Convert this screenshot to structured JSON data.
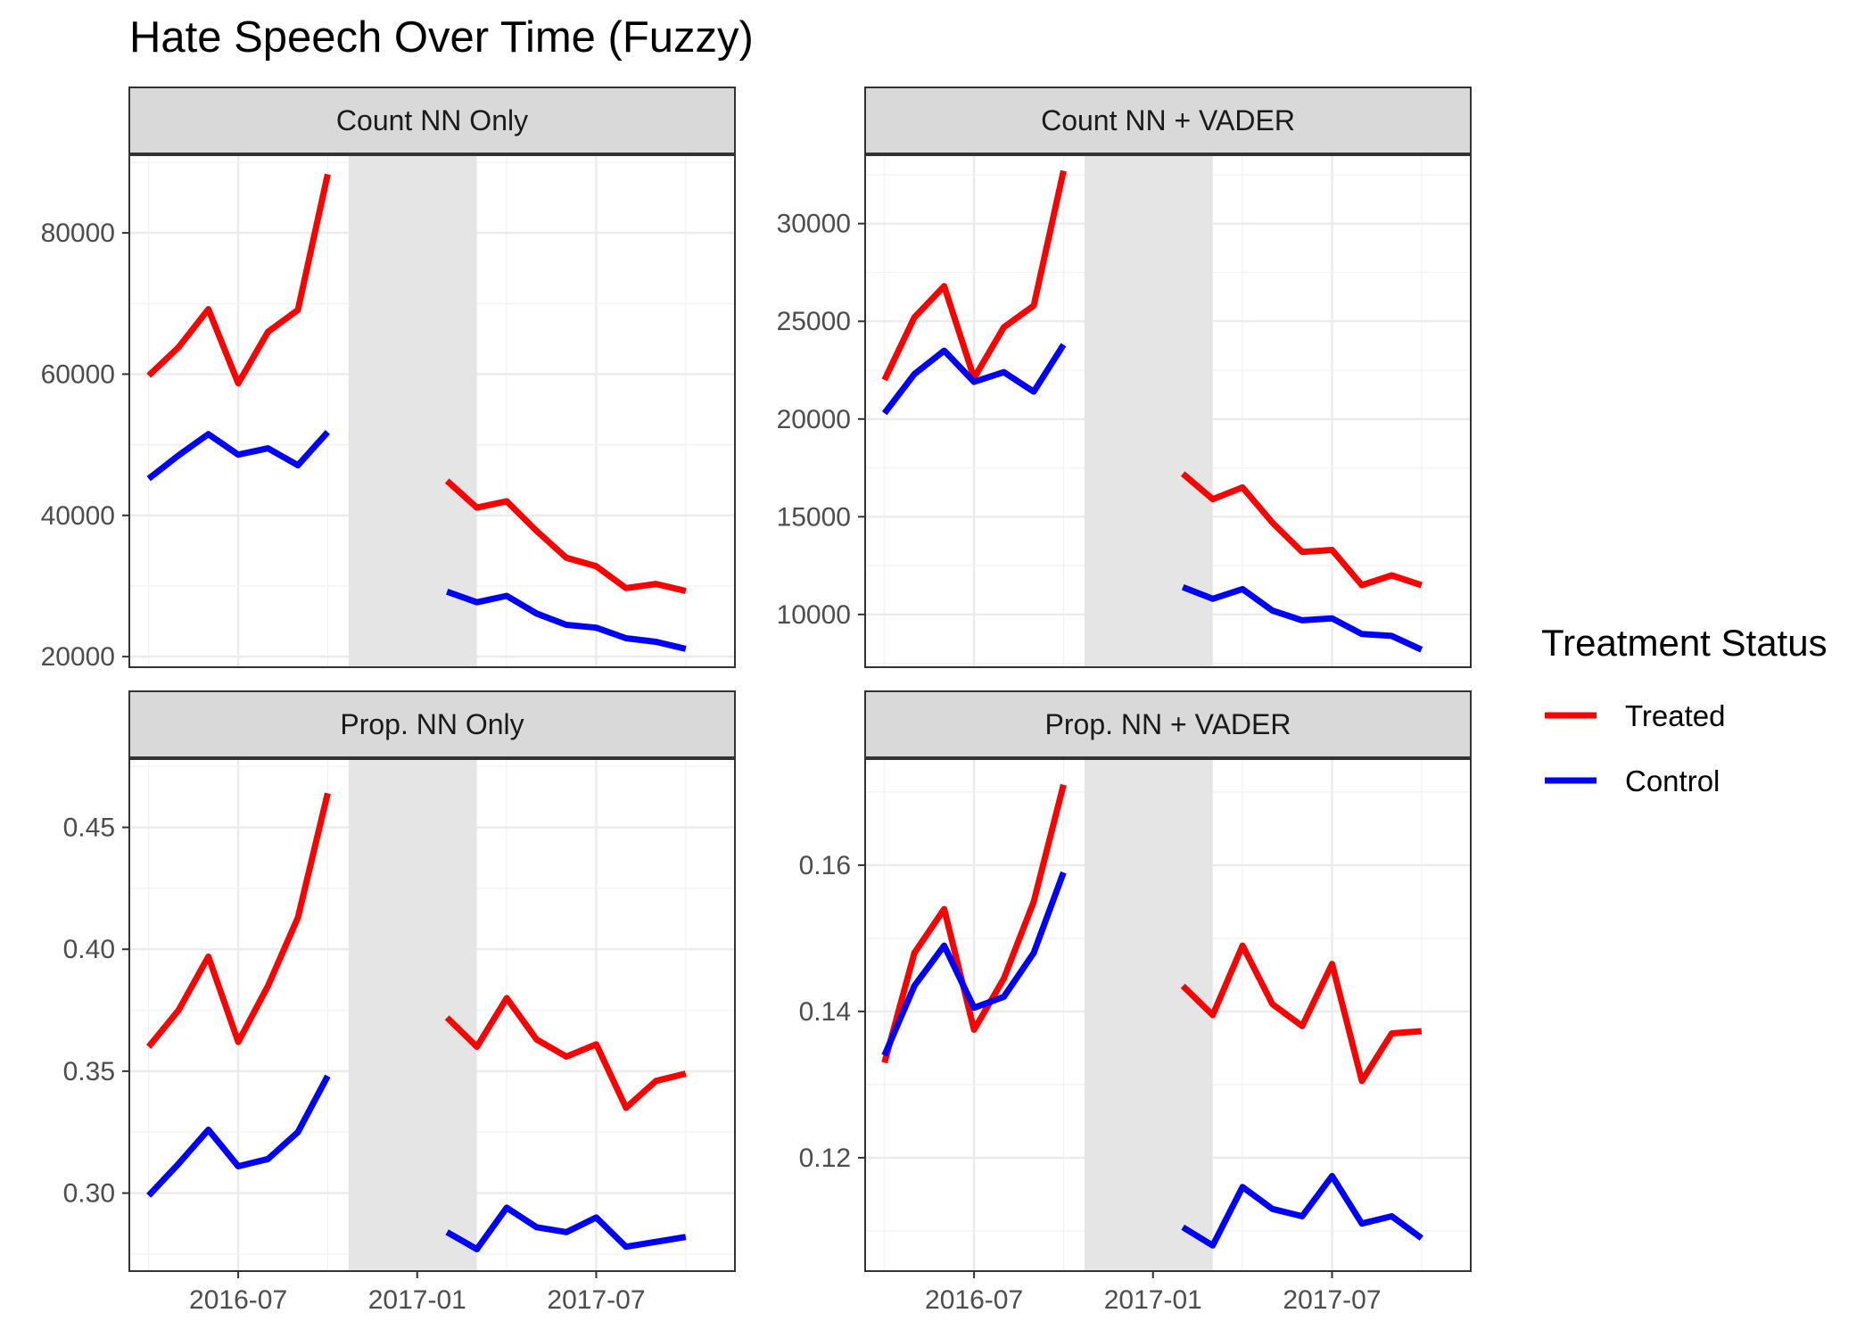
{
  "chart_data": {
    "title": "Hate Speech Over Time (Fuzzy)",
    "type": "line",
    "x": [
      "2016-04",
      "2016-05",
      "2016-06",
      "2016-07",
      "2016-08",
      "2016-09",
      "2016-10",
      "2016-11",
      "2016-12",
      "2017-01",
      "2017-02",
      "2017-03",
      "2017-04",
      "2017-05",
      "2017-06",
      "2017-07",
      "2017-08",
      "2017-09",
      "2017-10",
      "2017-11"
    ],
    "xticks": [
      "2016-07",
      "2017-01",
      "2017-07"
    ],
    "shaded_period": [
      "2016-11",
      "2017-03"
    ],
    "grid": true,
    "legend": {
      "title": "Treatment Status",
      "position": "right",
      "entries": [
        {
          "name": "Treated",
          "color": "#ff0000"
        },
        {
          "name": "Control",
          "color": "#0000ff"
        }
      ]
    },
    "panels": [
      {
        "strip": "Count NN Only",
        "ylim": [
          18500,
          91000
        ],
        "yticks": [
          "20000",
          "40000",
          "60000",
          "80000"
        ],
        "series": [
          {
            "name": "Treated",
            "color": "#ff0000",
            "values": [
              59800,
              63800,
              69200,
              58700,
              66000,
              69100,
              88300,
              null,
              null,
              null,
              44900,
              41100,
              42000,
              37800,
              34000,
              32800,
              29700,
              30300,
              29300,
              null
            ]
          },
          {
            "name": "Control",
            "color": "#0000ff",
            "values": [
              45200,
              48500,
              51500,
              48600,
              49500,
              47100,
              51800,
              null,
              null,
              null,
              29200,
              27700,
              28600,
              26100,
              24500,
              24100,
              22600,
              22100,
              21100,
              null
            ]
          }
        ]
      },
      {
        "strip": "Count NN + VADER",
        "ylim": [
          7300,
          33500
        ],
        "yticks": [
          "10000",
          "15000",
          "20000",
          "25000",
          "30000"
        ],
        "series": [
          {
            "name": "Treated",
            "color": "#ff0000",
            "values": [
              22000,
              25200,
              26800,
              22100,
              24700,
              25800,
              32700,
              null,
              null,
              null,
              17200,
              15900,
              16500,
              14700,
              13200,
              13300,
              11500,
              12000,
              11500,
              null
            ]
          },
          {
            "name": "Control",
            "color": "#0000ff",
            "values": [
              20300,
              22300,
              23500,
              21900,
              22400,
              21400,
              23800,
              null,
              null,
              null,
              11400,
              10800,
              11300,
              10200,
              9700,
              9800,
              9000,
              8900,
              8200,
              null
            ]
          }
        ]
      },
      {
        "strip": "Prop. NN Only",
        "ylim": [
          0.268,
          0.478
        ],
        "yticks": [
          "0.30",
          "0.35",
          "0.40",
          "0.45"
        ],
        "series": [
          {
            "name": "Treated",
            "color": "#ff0000",
            "values": [
              0.36,
              0.375,
              0.397,
              0.362,
              0.385,
              0.413,
              0.464,
              null,
              null,
              null,
              0.372,
              0.36,
              0.38,
              0.363,
              0.356,
              0.361,
              0.335,
              0.346,
              0.349,
              null
            ]
          },
          {
            "name": "Control",
            "color": "#0000ff",
            "values": [
              0.299,
              0.312,
              0.326,
              0.311,
              0.314,
              0.325,
              0.348,
              null,
              null,
              null,
              0.284,
              0.277,
              0.294,
              0.286,
              0.284,
              0.29,
              0.278,
              0.28,
              0.282,
              null
            ]
          }
        ]
      },
      {
        "strip": "Prop. NN + VADER",
        "ylim": [
          0.1045,
          0.1745
        ],
        "yticks": [
          "0.12",
          "0.14",
          "0.16"
        ],
        "series": [
          {
            "name": "Treated",
            "color": "#ff0000",
            "values": [
              0.133,
              0.148,
              0.154,
              0.1375,
              0.1445,
              0.155,
              0.171,
              null,
              null,
              null,
              0.1435,
              0.1395,
              0.149,
              0.141,
              0.138,
              0.1465,
              0.1305,
              0.137,
              0.1373,
              null
            ]
          },
          {
            "name": "Control",
            "color": "#0000ff",
            "values": [
              0.134,
              0.1435,
              0.149,
              0.1405,
              0.142,
              0.148,
              0.159,
              null,
              null,
              null,
              0.1105,
              0.108,
              0.116,
              0.113,
              0.112,
              0.1175,
              0.111,
              0.112,
              0.109,
              null
            ]
          }
        ]
      }
    ]
  }
}
